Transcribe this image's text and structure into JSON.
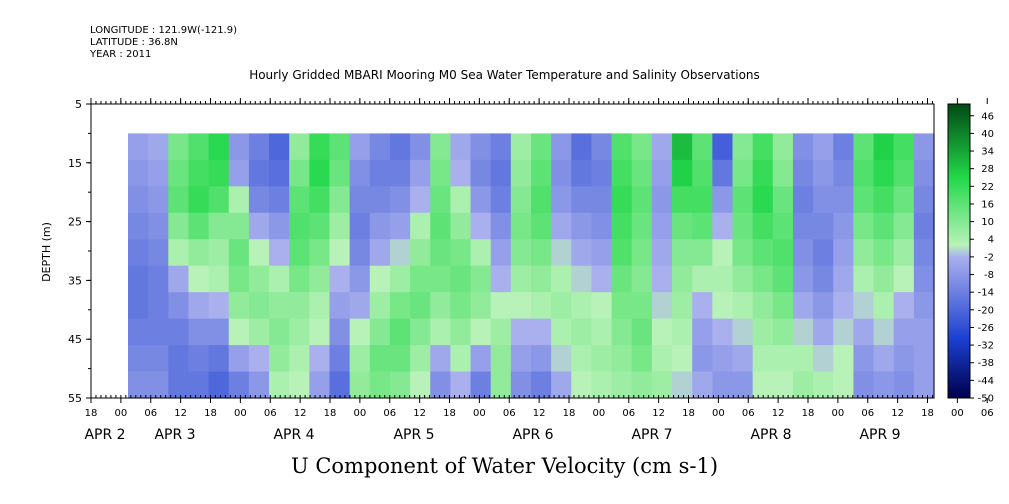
{
  "header": {
    "longitude": "LONGITUDE : 121.9W(-121.9)",
    "latitude": "LATITUDE : 36.8N",
    "year": "YEAR : 2011"
  },
  "chart_data": {
    "type": "heatmap",
    "title": "Hourly Gridded MBARI Mooring M0 Sea Water Temperature and Salinity Observations",
    "xlabel": "U Component of Water Velocity (cm s-1)",
    "ylabel": "DEPTH (m)",
    "y_axis": {
      "range": [
        5,
        55
      ],
      "inverted": true,
      "ticks": [
        5,
        15,
        25,
        35,
        45,
        55
      ]
    },
    "x_axis": {
      "hour_tick_labels": [
        "18",
        "00",
        "06",
        "12",
        "18",
        "00",
        "06",
        "12",
        "18",
        "00",
        "06",
        "12",
        "18",
        "00",
        "06",
        "12",
        "18",
        "00",
        "06",
        "12",
        "18",
        "00",
        "06",
        "12",
        "18",
        "00",
        "06",
        "12",
        "18",
        "00",
        "06",
        "12",
        "18",
        "00",
        "06",
        "12",
        "18",
        "00",
        "06",
        "12",
        "18"
      ],
      "day_labels": [
        "APR 2",
        "APR 3",
        "APR 4",
        "APR 5",
        "APR 6",
        "APR 7",
        "APR 8",
        "APR 9"
      ]
    },
    "colorbar": {
      "range": [
        -50,
        50
      ],
      "tick_labels": [
        "46",
        "40",
        "34",
        "28",
        "22",
        "16",
        "10",
        "4",
        "-2",
        "-8",
        "-14",
        "-20",
        "-26",
        "-32",
        "-38",
        "-44",
        "-50"
      ],
      "low_color": "#00004a",
      "mid_low_color": "#aab0ee",
      "mid_high_color": "#b8f2b8",
      "high_color": "#004a14"
    },
    "data_coverage": {
      "depth_range": [
        10,
        55
      ]
    },
    "column_profiles": {
      "description_free_note": "",
      "values": [
        [
          -6,
          -8,
          -10,
          -12,
          -14,
          -16,
          -16,
          -14,
          -12,
          -10
        ],
        [
          -4,
          -6,
          -8,
          -10,
          -12,
          -14,
          -14,
          -14,
          -12,
          -10
        ],
        [
          12,
          14,
          16,
          10,
          4,
          -4,
          -10,
          -14,
          -16,
          -16
        ],
        [
          18,
          20,
          22,
          16,
          8,
          2,
          -4,
          -10,
          -14,
          -16
        ],
        [
          24,
          22,
          18,
          10,
          6,
          4,
          -2,
          -10,
          -16,
          -20
        ],
        [
          -8,
          -6,
          4,
          10,
          14,
          12,
          8,
          2,
          -6,
          -14
        ],
        [
          -14,
          -16,
          -12,
          -4,
          2,
          8,
          10,
          6,
          -2,
          -8
        ],
        [
          -20,
          -18,
          -14,
          -8,
          -2,
          4,
          8,
          10,
          8,
          4
        ],
        [
          8,
          12,
          16,
          18,
          16,
          12,
          8,
          6,
          4,
          2
        ],
        [
          22,
          24,
          20,
          16,
          12,
          8,
          4,
          2,
          -2,
          -6
        ],
        [
          16,
          14,
          10,
          6,
          2,
          -2,
          -6,
          -10,
          -14,
          -18
        ],
        [
          -6,
          -10,
          -12,
          -14,
          -12,
          -8,
          -4,
          2,
          6,
          8
        ],
        [
          -12,
          -14,
          -12,
          -8,
          -4,
          2,
          6,
          10,
          14,
          12
        ],
        [
          -16,
          -14,
          -10,
          -6,
          0,
          6,
          12,
          16,
          14,
          10
        ],
        [
          -10,
          -6,
          -2,
          4,
          8,
          12,
          14,
          10,
          6,
          2
        ],
        [
          10,
          12,
          14,
          16,
          14,
          12,
          8,
          4,
          -4,
          -10
        ],
        [
          -4,
          -2,
          4,
          8,
          12,
          14,
          12,
          8,
          4,
          -2
        ],
        [
          -10,
          -12,
          -8,
          -2,
          4,
          10,
          8,
          2,
          -6,
          -14
        ],
        [
          -14,
          -16,
          -14,
          -10,
          -6,
          -2,
          2,
          6,
          8,
          8
        ],
        [
          6,
          8,
          10,
          12,
          10,
          6,
          2,
          -2,
          -6,
          -10
        ],
        [
          14,
          16,
          18,
          16,
          12,
          8,
          4,
          -2,
          -8,
          -14
        ],
        [
          -8,
          -10,
          -8,
          -4,
          0,
          4,
          6,
          4,
          0,
          -4
        ],
        [
          -18,
          -16,
          -12,
          -8,
          -4,
          0,
          4,
          6,
          4,
          2
        ],
        [
          -12,
          -14,
          -12,
          -10,
          -6,
          -2,
          2,
          4,
          6,
          4
        ],
        [
          18,
          20,
          22,
          20,
          18,
          14,
          12,
          10,
          8,
          6
        ],
        [
          12,
          14,
          16,
          14,
          12,
          10,
          12,
          14,
          12,
          8
        ],
        [
          -4,
          -6,
          -8,
          -6,
          -4,
          -2,
          0,
          2,
          4,
          6
        ],
        [
          30,
          26,
          20,
          14,
          10,
          8,
          6,
          4,
          2,
          0
        ],
        [
          16,
          18,
          20,
          16,
          10,
          4,
          -2,
          -6,
          -8,
          -4
        ],
        [
          -22,
          -16,
          -8,
          -2,
          2,
          4,
          2,
          -2,
          -6,
          -8
        ],
        [
          10,
          12,
          16,
          14,
          12,
          8,
          4,
          0,
          -4,
          -8
        ],
        [
          20,
          22,
          24,
          20,
          16,
          12,
          8,
          6,
          4,
          2
        ],
        [
          8,
          10,
          14,
          16,
          18,
          16,
          12,
          8,
          4,
          2
        ],
        [
          -10,
          -12,
          -14,
          -12,
          -10,
          -8,
          -4,
          0,
          4,
          6
        ],
        [
          -6,
          -8,
          -10,
          -12,
          -14,
          -12,
          -8,
          -4,
          0,
          4
        ],
        [
          -14,
          -12,
          -10,
          -8,
          -6,
          -4,
          -2,
          0,
          2,
          2
        ],
        [
          16,
          18,
          16,
          12,
          8,
          4,
          0,
          -4,
          -8,
          -10
        ],
        [
          26,
          24,
          20,
          16,
          12,
          8,
          4,
          0,
          -4,
          -8
        ],
        [
          20,
          18,
          14,
          10,
          6,
          2,
          -2,
          -6,
          -8,
          -10
        ],
        [
          -8,
          -10,
          -12,
          -14,
          -12,
          -10,
          -8,
          -6,
          -6,
          -6
        ]
      ]
    }
  }
}
